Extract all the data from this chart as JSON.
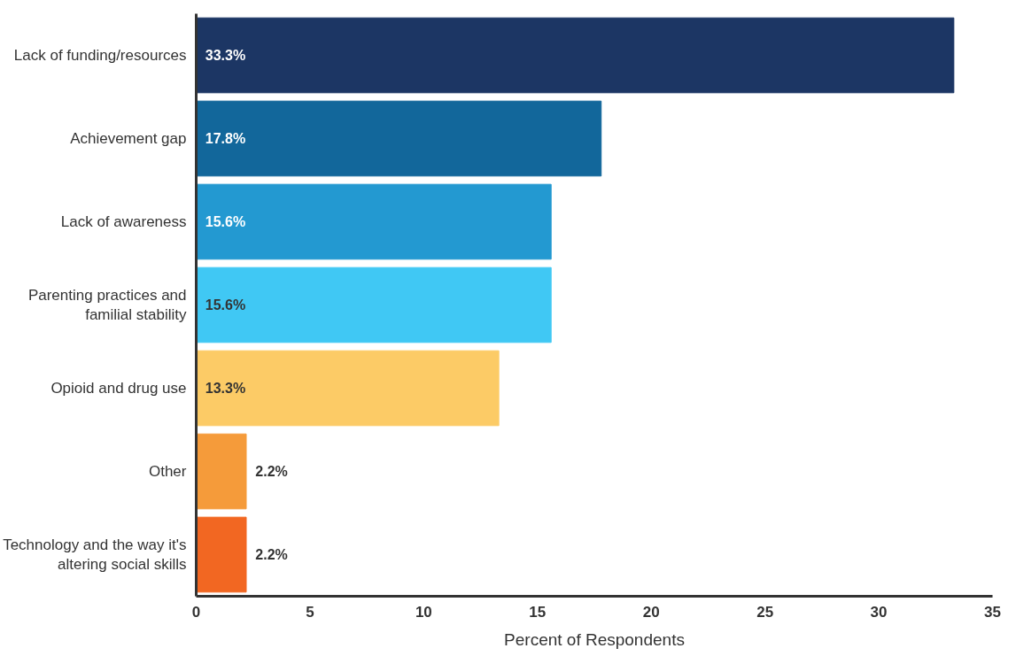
{
  "chart_data": {
    "type": "bar",
    "orientation": "horizontal",
    "xlabel": "Percent of Respondents",
    "categories": [
      "Lack of funding/resources",
      "Achievement gap",
      "Lack of awareness",
      "Parenting practices and\nfamilial stability",
      "Opioid and drug use",
      "Other",
      "Technology and the way it's\naltering social skills"
    ],
    "values": [
      33.3,
      17.8,
      15.6,
      15.6,
      13.3,
      2.2,
      2.2
    ],
    "value_labels": [
      "33.3%",
      "17.8%",
      "15.6%",
      "15.6%",
      "13.3%",
      "2.2%",
      "2.2%"
    ],
    "colors": [
      "#1c3664",
      "#12679b",
      "#2399d1",
      "#40c8f4",
      "#fccb66",
      "#f59b3a",
      "#f26722"
    ],
    "xlim": [
      0,
      35
    ],
    "xticks": [
      0,
      5,
      10,
      15,
      20,
      25,
      30,
      35
    ],
    "grid": false
  }
}
